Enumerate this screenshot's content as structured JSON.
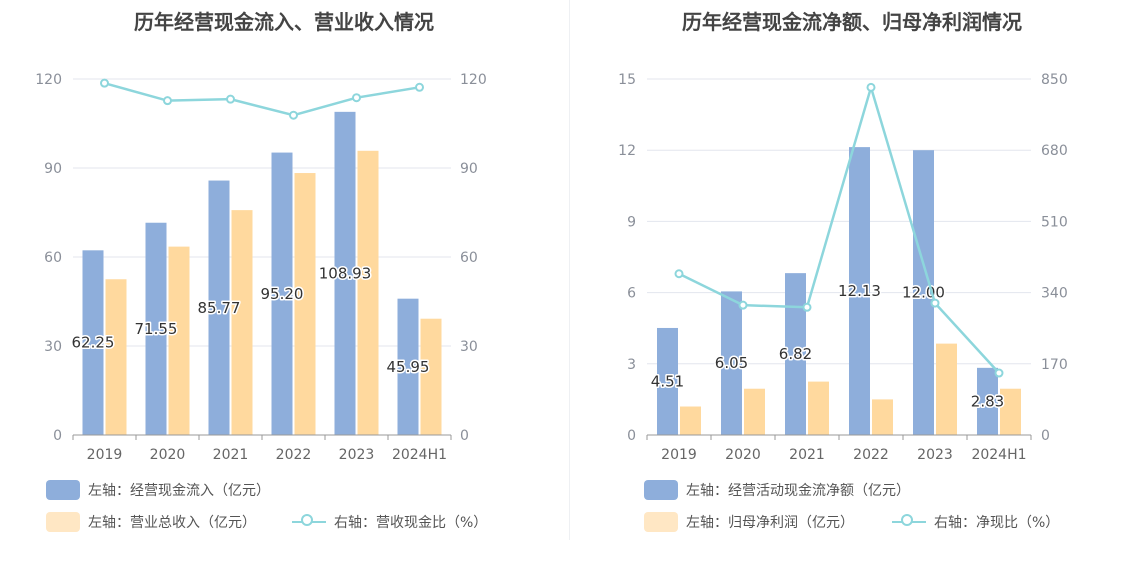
{
  "colors": {
    "bar_primary": "#8eaedb",
    "bar_secondary": "#ffd99e",
    "legend_secondary": "#ffe7c4",
    "line": "#8dd6dc"
  },
  "chart_data": [
    {
      "type": "bar",
      "title": "历年经营现金流入、营业收入情况",
      "categories": [
        "2019",
        "2020",
        "2021",
        "2022",
        "2023",
        "2024H1"
      ],
      "ylim_left": [
        0,
        120
      ],
      "yticks_left": [
        0,
        30,
        60,
        90,
        120
      ],
      "ylim_right": [
        0,
        120
      ],
      "yticks_right": [
        0,
        30,
        60,
        90,
        120
      ],
      "grid": true,
      "legend_position": "bottom-left",
      "series": [
        {
          "name": "左轴：经营现金流入（亿元）",
          "axis": "left",
          "type": "bar",
          "values": [
            62.25,
            71.55,
            85.77,
            95.2,
            108.93,
            45.95
          ],
          "labels": [
            "62.25",
            "71.55",
            "85.77",
            "95.20",
            "108.93",
            "45.95"
          ]
        },
        {
          "name": "左轴：营业总收入（亿元）",
          "axis": "left",
          "type": "bar",
          "values": [
            52.5,
            63.5,
            75.8,
            88.3,
            95.8,
            39.2
          ]
        },
        {
          "name": "右轴：营收现金比（%）",
          "axis": "right",
          "type": "line",
          "values": [
            118.6,
            112.7,
            113.2,
            107.8,
            113.7,
            117.2
          ]
        }
      ]
    },
    {
      "type": "bar",
      "title": "历年经营现金流净额、归母净利润情况",
      "categories": [
        "2019",
        "2020",
        "2021",
        "2022",
        "2023",
        "2024H1"
      ],
      "ylim_left": [
        0,
        15
      ],
      "yticks_left": [
        0,
        3,
        6,
        9,
        12,
        15
      ],
      "ylim_right": [
        0,
        850
      ],
      "yticks_right": [
        0,
        170,
        340,
        510,
        680,
        850
      ],
      "grid": true,
      "legend_position": "bottom-left",
      "series": [
        {
          "name": "左轴：经营活动现金流净额（亿元）",
          "axis": "left",
          "type": "bar",
          "values": [
            4.51,
            6.05,
            6.82,
            12.13,
            12.0,
            2.83
          ],
          "labels": [
            "4.51",
            "6.05",
            "6.82",
            "12.13",
            "12.00",
            "2.83"
          ]
        },
        {
          "name": "左轴：归母净利润（亿元）",
          "axis": "left",
          "type": "bar",
          "values": [
            1.2,
            1.95,
            2.25,
            1.5,
            3.85,
            1.95
          ]
        },
        {
          "name": "右轴：净现比（%）",
          "axis": "right",
          "type": "line",
          "values": [
            385,
            310,
            305,
            830,
            315,
            148
          ]
        }
      ]
    }
  ]
}
